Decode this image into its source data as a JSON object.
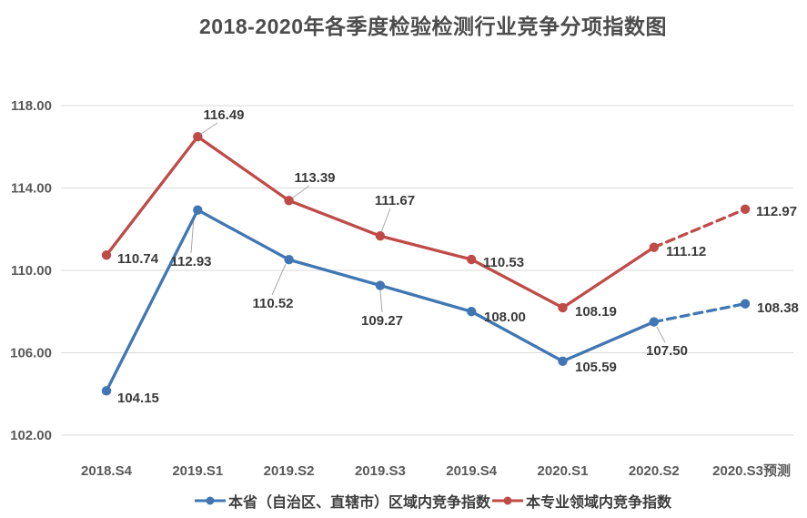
{
  "title": "2018-2020年各季度检验检测行业竞争分项指数图",
  "chart_data": {
    "type": "line",
    "title": "2018-2020年各季度检验检测行业竞争分项指数图",
    "categories": [
      "2018.S4",
      "2019.S1",
      "2019.S2",
      "2019.S3",
      "2019.S4",
      "2020.S1",
      "2020.S2",
      "2020.S3预测"
    ],
    "series": [
      {
        "name": "本省（自治区、直辖市）区域内竞争指数",
        "color": "#4076B4",
        "values": [
          104.15,
          112.93,
          110.52,
          109.27,
          108.0,
          105.59,
          107.5,
          108.38
        ],
        "forecast_from_index": 6
      },
      {
        "name": "本专业领域内竞争指数",
        "color": "#BE4B48",
        "values": [
          110.74,
          116.49,
          113.39,
          111.67,
          110.53,
          108.19,
          111.12,
          112.97
        ],
        "forecast_from_index": 6
      }
    ],
    "ylim": [
      102,
      118
    ],
    "y_ticks": [
      "118.00",
      "114.00",
      "110.00",
      "106.00",
      "102.00"
    ],
    "grid": true,
    "legend_position": "bottom",
    "data_labels_decimals": 2
  },
  "colors": {
    "grid": "#d9d9d9",
    "axis_text": "#595959",
    "title_text": "#4c4c4c",
    "data_label_text": "#3a3a3a"
  }
}
